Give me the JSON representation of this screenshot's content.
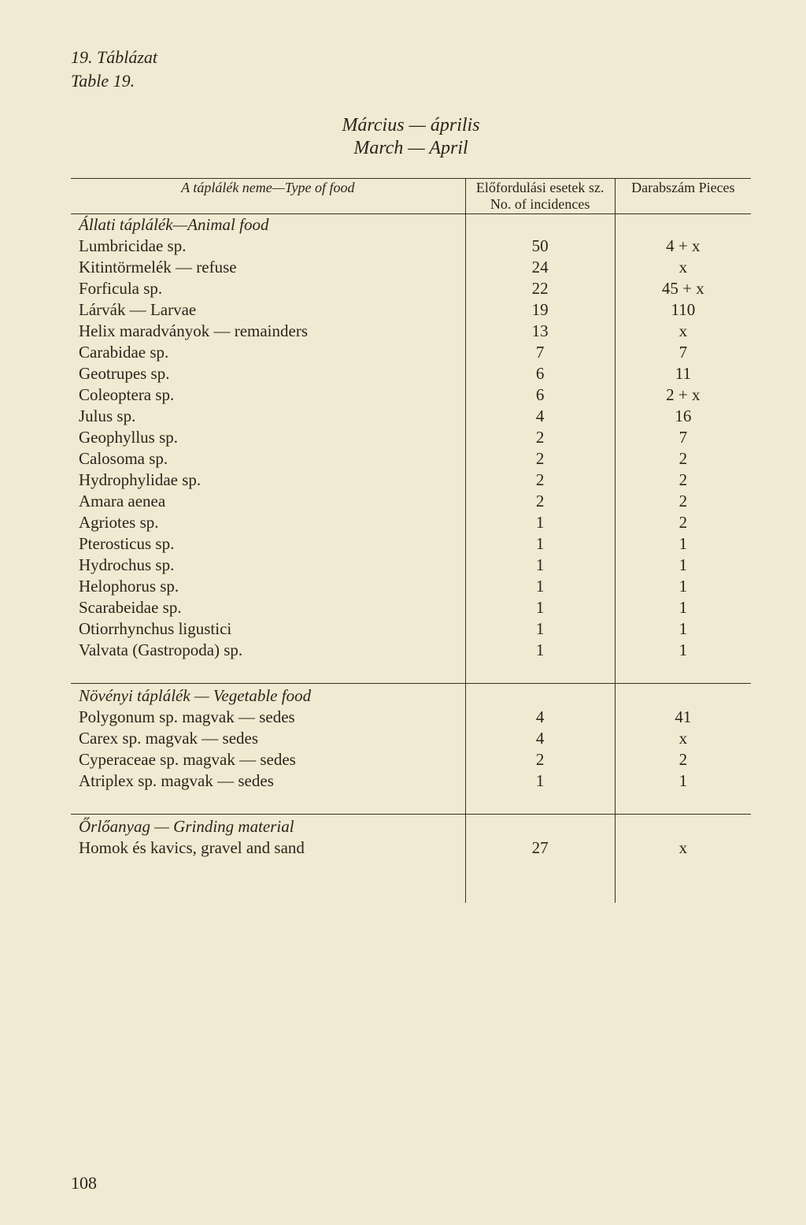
{
  "table_number_hu": "19. Táblázat",
  "table_number_en": "Table 19.",
  "title_hu": "Március — április",
  "title_en": "March — April",
  "header": {
    "name": "A táplálék neme—Type of food",
    "incidences": "Előfordulási esetek sz.\nNo. of incidences",
    "pieces": "Darabszám\nPieces"
  },
  "sections": [
    {
      "heading": "Állati táplálék—Animal food",
      "rows": [
        {
          "name": "Lumbricidae sp.",
          "inc": "50",
          "pc": "4 + x"
        },
        {
          "name": "Kitintörmelék — refuse",
          "inc": "24",
          "pc": "x"
        },
        {
          "name": "Forficula sp.",
          "inc": "22",
          "pc": "45 + x"
        },
        {
          "name": "Lárvák — Larvae",
          "inc": "19",
          "pc": "110"
        },
        {
          "name": "Helix maradványok — remainders",
          "inc": "13",
          "pc": "x"
        },
        {
          "name": "Carabidae sp.",
          "inc": "7",
          "pc": "7"
        },
        {
          "name": "Geotrupes sp.",
          "inc": "6",
          "pc": "11"
        },
        {
          "name": "Coleoptera sp.",
          "inc": "6",
          "pc": "2 + x"
        },
        {
          "name": "Julus sp.",
          "inc": "4",
          "pc": "16"
        },
        {
          "name": "Geophyllus sp.",
          "inc": "2",
          "pc": "7"
        },
        {
          "name": "Calosoma sp.",
          "inc": "2",
          "pc": "2"
        },
        {
          "name": "Hydrophylidae sp.",
          "inc": "2",
          "pc": "2"
        },
        {
          "name": "Amara aenea",
          "inc": "2",
          "pc": "2"
        },
        {
          "name": "Agriotes sp.",
          "inc": "1",
          "pc": "2"
        },
        {
          "name": "Pterosticus sp.",
          "inc": "1",
          "pc": "1"
        },
        {
          "name": "Hydrochus sp.",
          "inc": "1",
          "pc": "1"
        },
        {
          "name": "Helophorus sp.",
          "inc": "1",
          "pc": "1"
        },
        {
          "name": "Scarabeidae sp.",
          "inc": "1",
          "pc": "1"
        },
        {
          "name": "Otiorrhynchus ligustici",
          "inc": "1",
          "pc": "1"
        },
        {
          "name": "Valvata (Gastropoda) sp.",
          "inc": "1",
          "pc": "1"
        }
      ]
    },
    {
      "heading": "Növényi táplálék — Vegetable food",
      "rows": [
        {
          "name": "Polygonum sp. magvak — sedes",
          "inc": "4",
          "pc": "41"
        },
        {
          "name": "Carex sp. magvak — sedes",
          "inc": "4",
          "pc": "x"
        },
        {
          "name": "Cyperaceae sp. magvak — sedes",
          "inc": "2",
          "pc": "2"
        },
        {
          "name": "Atriplex sp. magvak — sedes",
          "inc": "1",
          "pc": "1"
        }
      ]
    },
    {
      "heading": "Őrlőanyag — Grinding material",
      "rows": [
        {
          "name": "Homok és kavics, gravel and sand",
          "inc": "27",
          "pc": "x"
        }
      ]
    }
  ],
  "page_number": "108",
  "colors": {
    "paper": "#f2e9d2",
    "ink": "#2b241a",
    "rule": "#3a2f1f"
  }
}
